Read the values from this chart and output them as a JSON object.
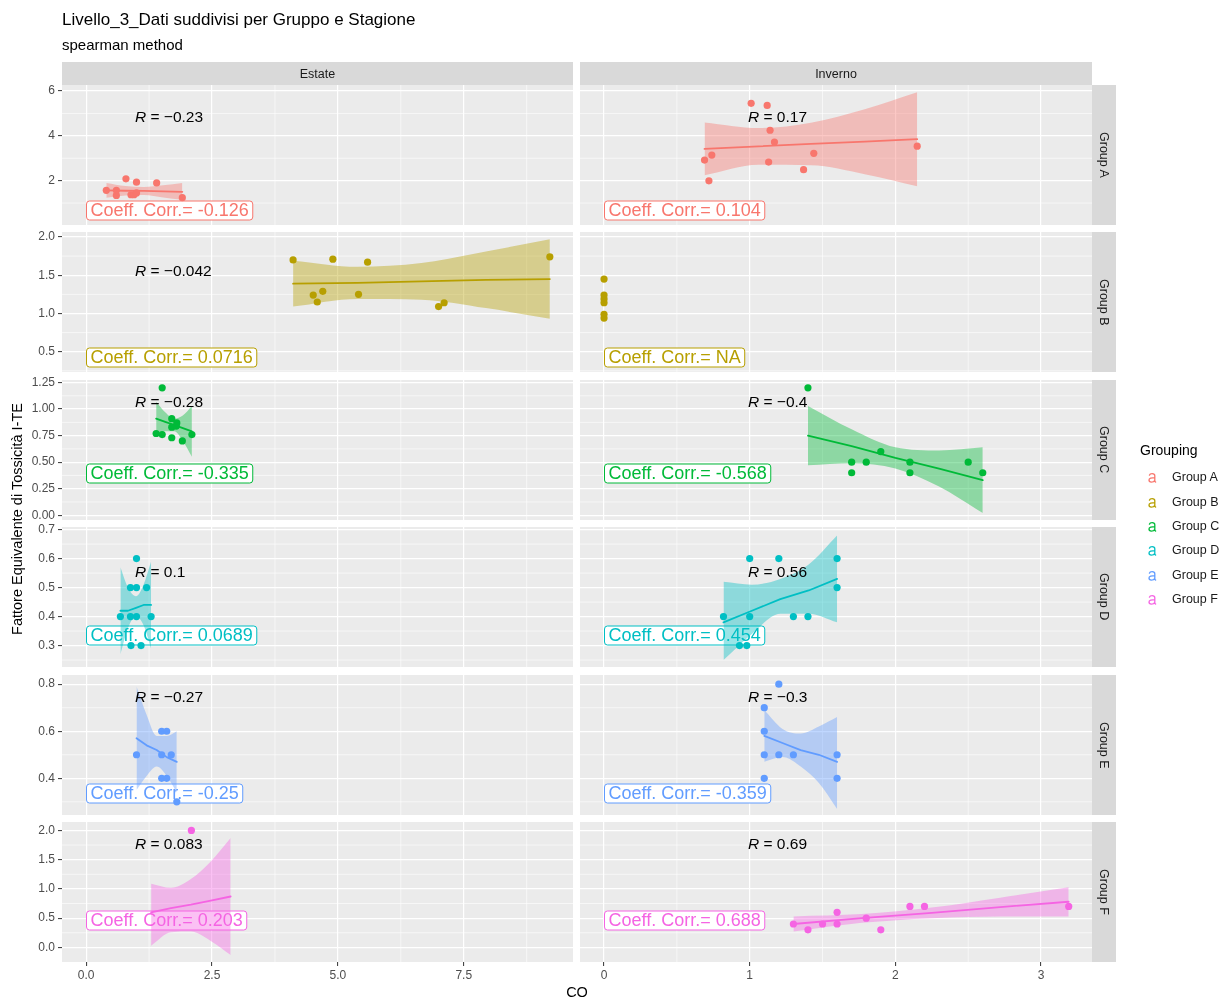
{
  "chart_data": [
    {
      "type": "scatter",
      "title": "Livello_3_Dati suddivisi per Gruppo e Stagione",
      "subtitle": "spearman method",
      "xlabel": "CO",
      "legend": "right",
      "legend_title": "Grouping",
      "x2label": "Estate",
      "series": [
        {
          "name": "Group A",
          "color": "#f8766d",
          "x": [
            0.4,
            0.6,
            0.6,
            0.79,
            0.89,
            0.95,
            1.0,
            1.0,
            1.4,
            1.91
          ],
          "values": [
            1.57,
            1.34,
            1.57,
            2.08,
            1.37,
            1.37,
            1.45,
            1.93,
            1.9,
            1.24
          ]
        },
        {
          "type": "line",
          "marker": "none",
          "color": "#f8766d",
          "x": [
            0.4,
            0.78,
            1.15,
            1.53,
            1.91
          ],
          "values": [
            1.57,
            1.55,
            1.54,
            1.52,
            1.5
          ],
          "lower": [
            1.24,
            1.34,
            1.36,
            1.25,
            1.15
          ],
          "upper": [
            1.9,
            1.76,
            1.72,
            1.79,
            1.9
          ]
        }
      ],
      "xlim": [
        -0.48,
        9.67
      ],
      "xticks": [
        0,
        2.5,
        5,
        7.5
      ],
      "ylim": [
        0.02,
        6.27
      ],
      "yticks": [
        2,
        4,
        6
      ],
      "annotations": [
        "R = −0.23",
        "Coeff. Corr.= -0.126"
      ],
      "tick_labels": "y",
      "grid": true,
      "marker": "circle"
    },
    {
      "type": "scatter",
      "x2label": "Inverno",
      "y2label": "Group A",
      "series": [
        {
          "color": "#f8766d",
          "x": [
            0.69,
            0.72,
            0.74,
            1.01,
            1.12,
            1.13,
            1.14,
            1.17,
            1.37,
            1.44,
            2.15
          ],
          "values": [
            2.92,
            1.99,
            3.14,
            5.45,
            5.36,
            2.83,
            4.25,
            3.72,
            2.49,
            3.22,
            3.54
          ]
        },
        {
          "type": "line",
          "marker": "none",
          "color": "#f8766d",
          "x": [
            0.69,
            1.06,
            1.42,
            1.79,
            2.15
          ],
          "values": [
            3.42,
            3.53,
            3.64,
            3.74,
            3.85
          ],
          "lower": [
            2.24,
            2.71,
            2.69,
            2.29,
            1.75
          ],
          "upper": [
            4.6,
            4.35,
            4.59,
            5.19,
            5.95
          ]
        }
      ],
      "xlim": [
        -0.165,
        3.35
      ],
      "xticks": [
        0,
        1,
        2,
        3
      ],
      "ylim": [
        0.02,
        6.27
      ],
      "yticks": [
        2,
        4,
        6
      ],
      "annotations": [
        "R = 0.17",
        "Coeff. Corr.= 0.104"
      ],
      "tick_labels": false,
      "grid": true,
      "marker": "circle"
    },
    {
      "type": "scatter",
      "series": [
        {
          "name": "Group B",
          "color": "#b79f00",
          "x": [
            4.11,
            4.51,
            4.59,
            4.7,
            4.9,
            5.41,
            5.59,
            7.0,
            7.11,
            9.21
          ],
          "values": [
            1.7,
            1.24,
            1.15,
            1.29,
            1.71,
            1.25,
            1.67,
            1.09,
            1.14,
            1.74
          ]
        },
        {
          "type": "line",
          "marker": "none",
          "color": "#b79f00",
          "x": [
            4.11,
            5.39,
            6.66,
            7.94,
            9.21
          ],
          "values": [
            1.39,
            1.4,
            1.42,
            1.44,
            1.45
          ],
          "lower": [
            1.09,
            1.19,
            1.18,
            1.07,
            0.93
          ],
          "upper": [
            1.69,
            1.61,
            1.66,
            1.81,
            1.97
          ]
        }
      ],
      "xlim": [
        -0.48,
        9.67
      ],
      "xticks": [
        0,
        2.5,
        5,
        7.5
      ],
      "ylim": [
        0.235,
        2.065
      ],
      "yticks": [
        0.5,
        {
          "value": 1,
          "label": "1.0"
        },
        1.5,
        {
          "value": 2,
          "label": "2.0"
        }
      ],
      "annotations": [
        "R = −0.042",
        "Coeff. Corr.= 0.0716"
      ],
      "tick_labels": "y",
      "grid": true,
      "marker": "circle"
    },
    {
      "type": "scatter",
      "y2label": "Group B",
      "series": [
        {
          "color": "#b79f00",
          "x": [
            0,
            0,
            0,
            0,
            0,
            0
          ],
          "values": [
            1.45,
            1.24,
            1.19,
            1.14,
            0.99,
            0.94
          ]
        }
      ],
      "xlim": [
        -0.165,
        3.35
      ],
      "xticks": [
        0,
        1,
        2,
        3
      ],
      "ylim": [
        0.235,
        2.065
      ],
      "yticks": [
        0.5,
        1,
        1.5,
        2
      ],
      "annotations": [
        "Coeff. Corr.= NA"
      ],
      "tick_labels": false,
      "grid": true,
      "marker": "circle"
    },
    {
      "type": "scatter",
      "ylabel": "Fattore Equivalente di Tossicità I-TE",
      "series": [
        {
          "name": "Group C",
          "color": "#00ba38",
          "x": [
            1.39,
            1.51,
            1.51,
            1.7,
            1.7,
            1.7,
            1.79,
            1.8,
            1.91,
            2.1
          ],
          "values": [
            0.77,
            0.76,
            1.2,
            0.91,
            0.83,
            0.73,
            0.84,
            0.87,
            0.7,
            0.76
          ]
        },
        {
          "type": "line",
          "marker": "none",
          "color": "#00ba38",
          "x": [
            1.39,
            1.57,
            1.75,
            1.92,
            2.1
          ],
          "values": [
            0.91,
            0.88,
            0.85,
            0.82,
            0.79
          ],
          "lower": [
            0.75,
            0.79,
            0.79,
            0.7,
            0.55
          ],
          "upper": [
            1.07,
            0.97,
            0.91,
            0.94,
            1.03
          ]
        }
      ],
      "xlim": [
        -0.48,
        9.67
      ],
      "xticks": [
        0,
        2.5,
        5,
        7.5
      ],
      "ylim": [
        -0.045,
        1.274
      ],
      "yticks": [
        {
          "value": 0,
          "label": "0.00"
        },
        0.25,
        {
          "value": 0.5,
          "label": "0.50"
        },
        0.75,
        {
          "value": 1,
          "label": "1.00"
        },
        1.25
      ],
      "annotations": [
        "R = −0.28",
        "Coeff. Corr.= -0.335"
      ],
      "tick_labels": "y",
      "grid": true,
      "marker": "circle"
    },
    {
      "type": "scatter",
      "y2label": "Group C",
      "series": [
        {
          "color": "#00ba38",
          "x": [
            1.4,
            1.7,
            1.7,
            1.8,
            1.9,
            2.1,
            2.1,
            2.5,
            2.6
          ],
          "values": [
            1.2,
            0.5,
            0.4,
            0.5,
            0.6,
            0.5,
            0.4,
            0.5,
            0.4
          ]
        },
        {
          "type": "line",
          "marker": "none",
          "color": "#00ba38",
          "x": [
            1.4,
            1.7,
            2.0,
            2.3,
            2.6
          ],
          "values": [
            0.75,
            0.65,
            0.54,
            0.44,
            0.33
          ],
          "lower": [
            0.47,
            0.49,
            0.44,
            0.27,
            0.02
          ],
          "upper": [
            1.03,
            0.81,
            0.64,
            0.61,
            0.64
          ]
        }
      ],
      "xlim": [
        -0.165,
        3.35
      ],
      "xticks": [
        0,
        1,
        2,
        3
      ],
      "ylim": [
        -0.045,
        1.274
      ],
      "yticks": [
        0,
        0.25,
        0.5,
        0.75,
        1,
        1.25
      ],
      "annotations": [
        "R = −0.4",
        "Coeff. Corr.= -0.568"
      ],
      "tick_labels": false,
      "grid": true,
      "marker": "circle"
    },
    {
      "type": "scatter",
      "series": [
        {
          "name": "Group D",
          "color": "#00bfc4",
          "x": [
            0.68,
            0.88,
            0.88,
            0.89,
            1.0,
            1.0,
            1.0,
            1.09,
            1.2,
            1.29
          ],
          "values": [
            0.4,
            0.5,
            0.4,
            0.3,
            0.6,
            0.5,
            0.4,
            0.3,
            0.5,
            0.4
          ]
        },
        {
          "type": "line",
          "marker": "none",
          "color": "#00bfc4",
          "x": [
            0.68,
            0.83,
            0.99,
            1.14,
            1.29
          ],
          "values": [
            0.42,
            0.42,
            0.43,
            0.44,
            0.44
          ],
          "lower": [
            0.27,
            0.36,
            0.4,
            0.37,
            0.29
          ],
          "upper": [
            0.57,
            0.5,
            0.47,
            0.51,
            0.59
          ]
        }
      ],
      "xlim": [
        -0.48,
        9.67
      ],
      "xticks": [
        0,
        2.5,
        5,
        7.5
      ],
      "ylim": [
        0.226,
        0.709
      ],
      "yticks": [
        0.3,
        0.4,
        0.5,
        0.6,
        0.7
      ],
      "annotations": [
        "R = 0.1",
        "Coeff. Corr.= 0.0689"
      ],
      "tick_labels": "y",
      "grid": true,
      "marker": "circle"
    },
    {
      "type": "scatter",
      "y2label": "Group D",
      "series": [
        {
          "color": "#00bfc4",
          "x": [
            0.82,
            0.93,
            0.98,
            1.0,
            1.0,
            1.2,
            1.3,
            1.4,
            1.6,
            1.6
          ],
          "values": [
            0.4,
            0.3,
            0.3,
            0.6,
            0.4,
            0.6,
            0.4,
            0.4,
            0.6,
            0.5
          ]
        },
        {
          "type": "line",
          "marker": "none",
          "color": "#00bfc4",
          "x": [
            0.82,
            1.015,
            1.21,
            1.405,
            1.6
          ],
          "values": [
            0.38,
            0.42,
            0.46,
            0.49,
            0.53
          ],
          "lower": [
            0.25,
            0.34,
            0.41,
            0.41,
            0.38
          ],
          "upper": [
            0.52,
            0.51,
            0.53,
            0.58,
            0.68
          ]
        }
      ],
      "xlim": [
        -0.165,
        3.35
      ],
      "xticks": [
        0,
        1,
        2,
        3
      ],
      "ylim": [
        0.226,
        0.709
      ],
      "yticks": [
        0.3,
        0.4,
        0.5,
        0.6,
        0.7
      ],
      "annotations": [
        "R = 0.56",
        "Coeff. Corr.= 0.454"
      ],
      "tick_labels": false,
      "grid": true,
      "marker": "circle"
    },
    {
      "type": "scatter",
      "series": [
        {
          "name": "Group E",
          "color": "#619cff",
          "x": [
            1.0,
            1.5,
            1.5,
            1.5,
            1.6,
            1.6,
            1.69,
            1.8
          ],
          "values": [
            0.5,
            0.6,
            0.5,
            0.4,
            0.6,
            0.4,
            0.5,
            0.3
          ]
        },
        {
          "type": "line",
          "marker": "none",
          "color": "#619cff",
          "x": [
            1.0,
            1.2,
            1.4,
            1.6,
            1.8
          ],
          "values": [
            0.57,
            0.54,
            0.52,
            0.49,
            0.47
          ],
          "lower": [
            0.35,
            0.41,
            0.45,
            0.41,
            0.34
          ],
          "upper": [
            0.79,
            0.67,
            0.58,
            0.58,
            0.6
          ]
        }
      ],
      "xlim": [
        -0.48,
        9.67
      ],
      "xticks": [
        0,
        2.5,
        5,
        7.5
      ],
      "ylim": [
        0.244,
        0.839
      ],
      "yticks": [
        0.4,
        0.6,
        0.8
      ],
      "annotations": [
        "R = −0.27",
        "Coeff. Corr.= -0.25"
      ],
      "tick_labels": "y",
      "grid": true,
      "marker": "circle"
    },
    {
      "type": "scatter",
      "y2label": "Group E",
      "series": [
        {
          "color": "#619cff",
          "x": [
            1.1,
            1.1,
            1.1,
            1.1,
            1.2,
            1.2,
            1.3,
            1.6,
            1.6
          ],
          "values": [
            0.7,
            0.6,
            0.5,
            0.4,
            0.8,
            0.5,
            0.5,
            0.5,
            0.4
          ]
        },
        {
          "type": "line",
          "marker": "none",
          "color": "#619cff",
          "x": [
            1.1,
            1.225,
            1.35,
            1.475,
            1.6
          ],
          "values": [
            0.58,
            0.55,
            0.52,
            0.5,
            0.47
          ],
          "lower": [
            0.47,
            0.49,
            0.45,
            0.38,
            0.27
          ],
          "upper": [
            0.69,
            0.61,
            0.59,
            0.62,
            0.66
          ]
        }
      ],
      "xlim": [
        -0.165,
        3.35
      ],
      "xticks": [
        0,
        1,
        2,
        3
      ],
      "ylim": [
        0.244,
        0.839
      ],
      "yticks": [
        0.4,
        0.6,
        0.8
      ],
      "annotations": [
        "R = −0.3",
        "Coeff. Corr.= -0.359"
      ],
      "tick_labels": false,
      "grid": true,
      "marker": "circle"
    },
    {
      "type": "scatter",
      "series": [
        {
          "name": "Group F",
          "color": "#f564e3",
          "x": [
            2.09
          ],
          "values": [
            2.0
          ]
        },
        {
          "type": "line",
          "marker": "none",
          "color": "#f564e3",
          "x": [
            1.29,
            1.685,
            2.08,
            2.475,
            2.87
          ],
          "values": [
            0.6,
            0.67,
            0.73,
            0.8,
            0.87
          ],
          "lower": [
            0.03,
            0.26,
            0.27,
            0.11,
            -0.13
          ],
          "upper": [
            1.09,
            1.02,
            1.17,
            1.47,
            1.87
          ]
        }
      ],
      "xlim": [
        -0.48,
        9.67
      ],
      "xticks": [
        {
          "value": 0,
          "label": "0.0"
        },
        2.5,
        {
          "value": 5,
          "label": "5.0"
        },
        7.5
      ],
      "ylim": [
        -0.25,
        2.144
      ],
      "yticks": [
        {
          "value": 0,
          "label": "0.0"
        },
        0.5,
        {
          "value": 1,
          "label": "1.0"
        },
        1.5,
        {
          "value": 2,
          "label": "2.0"
        }
      ],
      "annotations": [
        "R = 0.083",
        "Coeff. Corr.= 0.203"
      ],
      "grid": true,
      "marker": "circle"
    },
    {
      "type": "scatter",
      "y2label": "Group F",
      "series": [
        {
          "color": "#f564e3",
          "x": [
            1.3,
            1.4,
            1.5,
            1.6,
            1.6,
            1.8,
            1.9,
            2.1,
            2.2,
            3.19
          ],
          "values": [
            0.4,
            0.3,
            0.4,
            0.6,
            0.4,
            0.5,
            0.3,
            0.7,
            0.7,
            0.7
          ]
        },
        {
          "type": "line",
          "marker": "none",
          "color": "#f564e3",
          "x": [
            1.3,
            1.77,
            2.25,
            2.72,
            3.19
          ],
          "values": [
            0.4,
            0.5,
            0.59,
            0.69,
            0.78
          ],
          "lower": [
            0.27,
            0.42,
            0.5,
            0.53,
            0.53
          ],
          "upper": [
            0.53,
            0.57,
            0.68,
            0.85,
            1.03
          ]
        }
      ],
      "xlim": [
        -0.165,
        3.35
      ],
      "xticks": [
        0,
        1,
        2,
        3
      ],
      "ylim": [
        -0.25,
        2.144
      ],
      "yticks": [
        0,
        0.5,
        1,
        1.5,
        2
      ],
      "annotations": [
        "R = 0.69",
        "Coeff. Corr.= 0.688"
      ],
      "tick_labels": "x",
      "grid": true,
      "marker": "circle"
    }
  ]
}
